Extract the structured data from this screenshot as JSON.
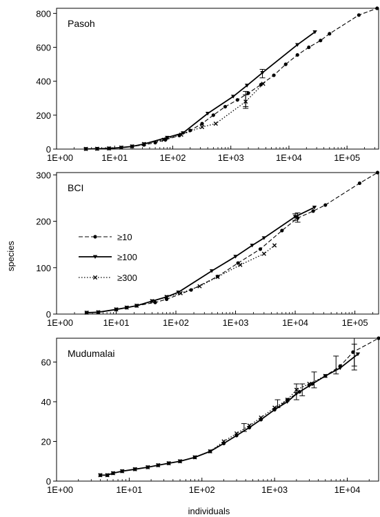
{
  "figure": {
    "ylabel": "species",
    "xlabel": "individuals",
    "legend_placement": "inside BCI panel, left",
    "legend": [
      {
        "key": "ge10",
        "label": "≥10",
        "style": "dashed",
        "marker": "circle"
      },
      {
        "key": "ge100",
        "label": "≥100",
        "style": "solid",
        "marker": "triangle-down"
      },
      {
        "key": "ge300",
        "label": "≥300",
        "style": "dotted",
        "marker": "x"
      }
    ]
  },
  "chart_data": [
    {
      "type": "line",
      "title": "Pasoh",
      "x_scale": "log",
      "xlim": [
        1,
        350000
      ],
      "ylim": [
        0,
        830
      ],
      "x_ticks": [
        1,
        10,
        100,
        1000,
        10000,
        100000
      ],
      "x_tick_labels": [
        "1E+00",
        "1E+01",
        "1E+02",
        "1E+03",
        "1E+04",
        "1E+05"
      ],
      "y_ticks": [
        0,
        200,
        400,
        600,
        800
      ],
      "y_tick_labels": [
        "0",
        "200",
        "400",
        "600",
        "800"
      ],
      "series": [
        {
          "key": "ge10",
          "x": [
            3.2,
            5,
            8,
            13,
            20,
            32,
            50,
            75,
            130,
            200,
            320,
            500,
            800,
            1300,
            2000,
            3300,
            5500,
            8800,
            14000,
            22000,
            35000,
            50000,
            160000,
            330000
          ],
          "y": [
            1,
            2,
            4,
            9,
            16,
            25,
            38,
            55,
            80,
            110,
            150,
            200,
            250,
            290,
            330,
            380,
            435,
            500,
            555,
            600,
            640,
            680,
            790,
            830
          ]
        },
        {
          "key": "ge100",
          "x": [
            3.2,
            5,
            8,
            13,
            20,
            32,
            80,
            150,
            400,
            1100,
            1900,
            3500,
            14000,
            28000
          ],
          "y": [
            1,
            2,
            4,
            9,
            16,
            30,
            68,
            95,
            210,
            310,
            375,
            450,
            615,
            690
          ]
        },
        {
          "key": "ge300",
          "x": [
            3.2,
            5,
            8,
            13,
            20,
            32,
            70,
            140,
            320,
            550,
            1800,
            3600
          ],
          "y": [
            1,
            2,
            4,
            9,
            16,
            30,
            55,
            85,
            130,
            150,
            280,
            385
          ]
        }
      ],
      "error_bars": [
        {
          "series": "ge10",
          "x": 1800,
          "low": 240,
          "high": 340
        },
        {
          "series": "ge100",
          "x": 3500,
          "low": 420,
          "high": 470
        },
        {
          "series": "ge300",
          "x": 1800,
          "low": 250,
          "high": 320
        }
      ]
    },
    {
      "type": "line",
      "title": "BCI",
      "x_scale": "log",
      "xlim": [
        1,
        250000
      ],
      "ylim": [
        0,
        305
      ],
      "x_ticks": [
        1,
        10,
        100,
        1000,
        10000,
        100000
      ],
      "x_tick_labels": [
        "1E+00",
        "1E+01",
        "1E+02",
        "1E+03",
        "1E+04",
        "1E+05"
      ],
      "y_ticks": [
        0,
        100,
        200,
        300
      ],
      "y_tick_labels": [
        "0",
        "100",
        "200",
        "300"
      ],
      "series": [
        {
          "key": "ge10",
          "x": [
            3.2,
            5,
            10,
            15,
            22,
            45,
            70,
            180,
            500,
            1100,
            2600,
            6000,
            11000,
            20000,
            32000,
            120000,
            240000
          ],
          "y": [
            3,
            4,
            10,
            14,
            18,
            25,
            32,
            52,
            81,
            110,
            140,
            180,
            207,
            222,
            235,
            282,
            305
          ]
        },
        {
          "key": "ge100",
          "x": [
            3.2,
            5,
            10,
            15,
            22,
            40,
            70,
            110,
            400,
            1000,
            1900,
            3000,
            10000,
            21000
          ],
          "y": [
            3,
            4,
            10,
            14,
            18,
            28,
            37,
            47,
            93,
            124,
            148,
            164,
            210,
            230
          ]
        },
        {
          "key": "ge300",
          "x": [
            3.2,
            5,
            10,
            15,
            22,
            40,
            70,
            120,
            250,
            500,
            1200,
            3000,
            4500
          ],
          "y": [
            3,
            4,
            10,
            14,
            18,
            28,
            37,
            45,
            60,
            80,
            106,
            130,
            148
          ]
        }
      ],
      "error_bars": [
        {
          "series": "ge10",
          "x": 11000,
          "low": 198,
          "high": 218
        },
        {
          "series": "ge100",
          "x": 10000,
          "low": 202,
          "high": 216
        }
      ]
    },
    {
      "type": "line",
      "title": "Mudumalai",
      "x_scale": "log",
      "xlim": [
        1,
        27000
      ],
      "ylim": [
        0,
        72
      ],
      "x_ticks": [
        1,
        10,
        100,
        1000,
        10000
      ],
      "x_tick_labels": [
        "1E+00",
        "1E+01",
        "1E+02",
        "1E+03",
        "1E+04"
      ],
      "y_ticks": [
        0,
        20,
        40,
        60
      ],
      "y_tick_labels": [
        "0",
        "20",
        "40",
        "60"
      ],
      "series": [
        {
          "key": "ge10",
          "x": [
            4,
            5,
            6,
            8,
            12,
            18,
            25,
            35,
            50,
            80,
            130,
            200,
            300,
            450,
            650,
            1000,
            1500,
            2200,
            3300,
            5000,
            8000,
            12000,
            27000
          ],
          "y": [
            3,
            3,
            4,
            5,
            6,
            7,
            8,
            9,
            10,
            12,
            15,
            19,
            23,
            27,
            31,
            36,
            41,
            45,
            49,
            53,
            58,
            65,
            72
          ]
        },
        {
          "key": "ge100",
          "x": [
            4,
            5,
            6,
            8,
            12,
            18,
            25,
            35,
            50,
            80,
            130,
            200,
            300,
            450,
            650,
            1000,
            1500,
            2000,
            3000,
            5000,
            8000,
            14000
          ],
          "y": [
            3,
            3,
            4,
            5,
            6,
            7,
            8,
            9,
            10,
            12,
            15,
            19,
            23,
            27,
            31,
            36,
            40,
            44,
            48,
            53,
            57,
            64
          ]
        },
        {
          "key": "ge300",
          "x": [
            4,
            5,
            6,
            8,
            12,
            18,
            25,
            35,
            50,
            80,
            130,
            200,
            300,
            450,
            650,
            1000,
            1500,
            2000,
            3000,
            5000
          ],
          "y": [
            3,
            3,
            4,
            5,
            6,
            7,
            8,
            9,
            10,
            12,
            15,
            20,
            24,
            28,
            32,
            37,
            41,
            46,
            49,
            53
          ]
        }
      ],
      "error_bars": [
        {
          "series": "ge10",
          "x": 380,
          "low": 25,
          "high": 29
        },
        {
          "series": "ge10",
          "x": 1100,
          "low": 37,
          "high": 41
        },
        {
          "series": "ge10",
          "x": 2000,
          "low": 41,
          "high": 49
        },
        {
          "series": "ge100",
          "x": 2400,
          "low": 43,
          "high": 49
        },
        {
          "series": "ge10",
          "x": 3500,
          "low": 47,
          "high": 55
        },
        {
          "series": "ge100",
          "x": 7000,
          "low": 54,
          "high": 63
        },
        {
          "series": "ge10",
          "x": 12500,
          "low": 58,
          "high": 72
        },
        {
          "series": "ge100",
          "x": 12500,
          "low": 56,
          "high": 69
        }
      ]
    }
  ]
}
